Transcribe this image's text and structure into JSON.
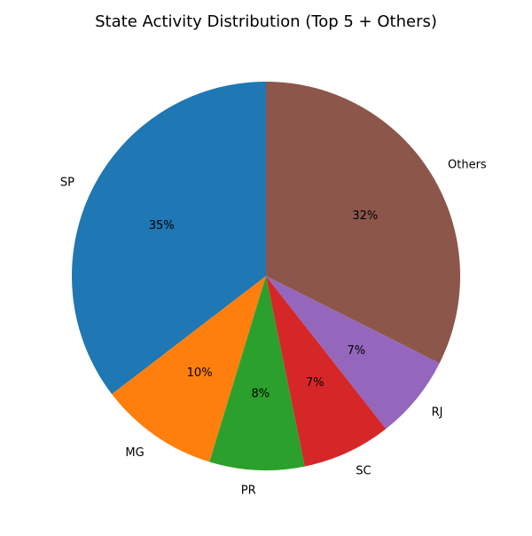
{
  "chart_data": {
    "type": "pie",
    "title": "State Activity Distribution (Top 5 + Others)",
    "categories": [
      "SP",
      "MG",
      "PR",
      "SC",
      "RJ",
      "Others"
    ],
    "values": [
      35.4,
      9.9,
      7.9,
      7.4,
      7.0,
      32.4
    ],
    "pct_labels": [
      "35%",
      "10%",
      "8%",
      "7%",
      "7%",
      "32%"
    ],
    "colors": [
      "#1f77b4",
      "#ff7f0e",
      "#2ca02c",
      "#d62728",
      "#9467bd",
      "#8c564b"
    ],
    "start_angle": 90,
    "direction": "counterclockwise"
  }
}
